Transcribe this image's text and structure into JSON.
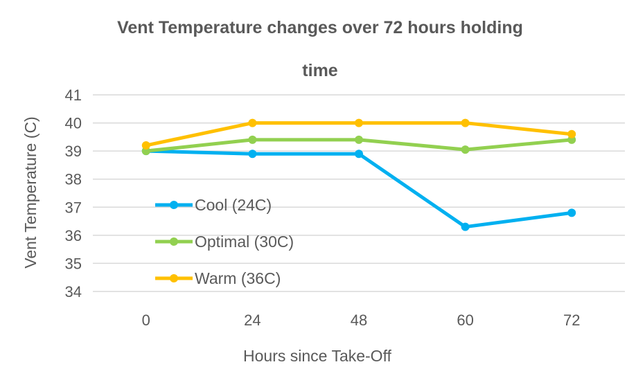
{
  "chart_data": {
    "type": "line",
    "title_line1": "Vent Temperature changes over 72 hours holding",
    "title_line2": "time",
    "xlabel": "Hours since Take-Off",
    "ylabel": "Vent Temperature (C)",
    "categories": [
      "0",
      "24",
      "48",
      "60",
      "72"
    ],
    "ylim": [
      34,
      41
    ],
    "yticks": [
      "34",
      "35",
      "36",
      "37",
      "38",
      "39",
      "40",
      "41"
    ],
    "grid": true,
    "legend_position": "left-inside",
    "series": [
      {
        "name": "Cool (24C)",
        "color": "#00B0F0",
        "values": [
          39.0,
          38.9,
          38.9,
          36.3,
          36.8
        ]
      },
      {
        "name": "Optimal (30C)",
        "color": "#92D050",
        "values": [
          39.0,
          39.4,
          39.4,
          39.05,
          39.4
        ]
      },
      {
        "name": "Warm (36C)",
        "color": "#FFC000",
        "values": [
          39.2,
          40.0,
          40.0,
          40.0,
          39.6
        ]
      }
    ]
  }
}
